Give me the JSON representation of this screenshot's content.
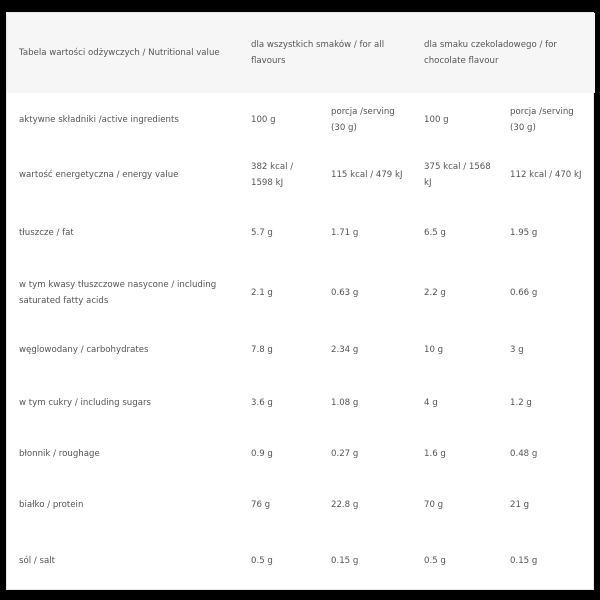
{
  "header": {
    "label": "Tabela wartości odżywczych / Nutritional value",
    "all_flavours": "dla wszystkich smaków / for all flavours",
    "chocolate": "dla smaku czekoladowego / for chocolate flavour"
  },
  "rows": [
    {
      "name": "aktywne składniki /active ingredients",
      "a100": "100 g",
      "aserv": "porcja /serving (30 g)",
      "c100": "100 g",
      "cserv": "porcja /serving (30 g)"
    },
    {
      "name": "wartość energetyczna / energy value",
      "a100": "382 kcal / 1598 kJ",
      "aserv": "115 kcal / 479 kJ",
      "c100": "375 kcal / 1568 kJ",
      "cserv": "112 kcal / 470 kJ"
    },
    {
      "name": "tłuszcze / fat",
      "a100": "5.7 g",
      "aserv": "1.71 g",
      "c100": "6.5 g",
      "cserv": "1.95 g"
    },
    {
      "name": "w tym kwasy tłuszczowe nasycone / including saturated fatty acids",
      "a100": "2.1 g",
      "aserv": "0.63 g",
      "c100": "2.2 g",
      "cserv": "0.66 g"
    },
    {
      "name": "węglowodany / carbohydrates",
      "a100": "7.8 g",
      "aserv": "2.34 g",
      "c100": "10 g",
      "cserv": "3 g"
    },
    {
      "name": "w tym cukry / including sugars",
      "a100": "3.6 g",
      "aserv": "1.08 g",
      "c100": "4 g",
      "cserv": "1.2 g"
    },
    {
      "name": "błonnik / roughage",
      "a100": "0.9 g",
      "aserv": "0.27 g",
      "c100": "1.6 g",
      "cserv": "0.48 g"
    },
    {
      "name": "białko / protein",
      "a100": "76 g",
      "aserv": "22.8 g",
      "c100": "70 g",
      "cserv": "21 g"
    },
    {
      "name": "sól / salt",
      "a100": "0.5 g",
      "aserv": "0.15 g",
      "c100": "0.5 g",
      "cserv": "0.15 g"
    }
  ]
}
